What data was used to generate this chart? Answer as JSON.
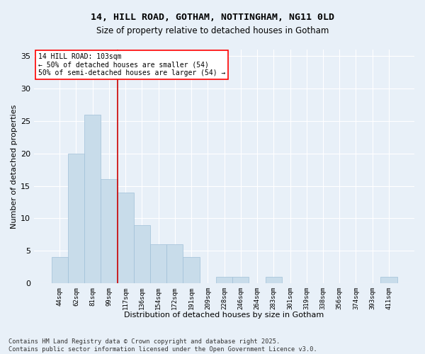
{
  "title_line1": "14, HILL ROAD, GOTHAM, NOTTINGHAM, NG11 0LD",
  "title_line2": "Size of property relative to detached houses in Gotham",
  "xlabel": "Distribution of detached houses by size in Gotham",
  "ylabel": "Number of detached properties",
  "bar_color": "#c8dcea",
  "bar_edge_color": "#a0c0d8",
  "vline_color": "#cc0000",
  "categories": [
    "44sqm",
    "62sqm",
    "81sqm",
    "99sqm",
    "117sqm",
    "136sqm",
    "154sqm",
    "172sqm",
    "191sqm",
    "209sqm",
    "228sqm",
    "246sqm",
    "264sqm",
    "283sqm",
    "301sqm",
    "319sqm",
    "338sqm",
    "356sqm",
    "374sqm",
    "393sqm",
    "411sqm"
  ],
  "values": [
    4,
    20,
    26,
    16,
    14,
    9,
    6,
    6,
    4,
    0,
    1,
    1,
    0,
    1,
    0,
    0,
    0,
    0,
    0,
    0,
    1
  ],
  "ylim": [
    0,
    36
  ],
  "yticks": [
    0,
    5,
    10,
    15,
    20,
    25,
    30,
    35
  ],
  "annotation_text": "14 HILL ROAD: 103sqm\n← 50% of detached houses are smaller (54)\n50% of semi-detached houses are larger (54) →",
  "bg_color": "#e8f0f8",
  "grid_color": "#ffffff",
  "footer": "Contains HM Land Registry data © Crown copyright and database right 2025.\nContains public sector information licensed under the Open Government Licence v3.0.",
  "vline_index": 3,
  "fig_bg_color": "#e8f0f8"
}
